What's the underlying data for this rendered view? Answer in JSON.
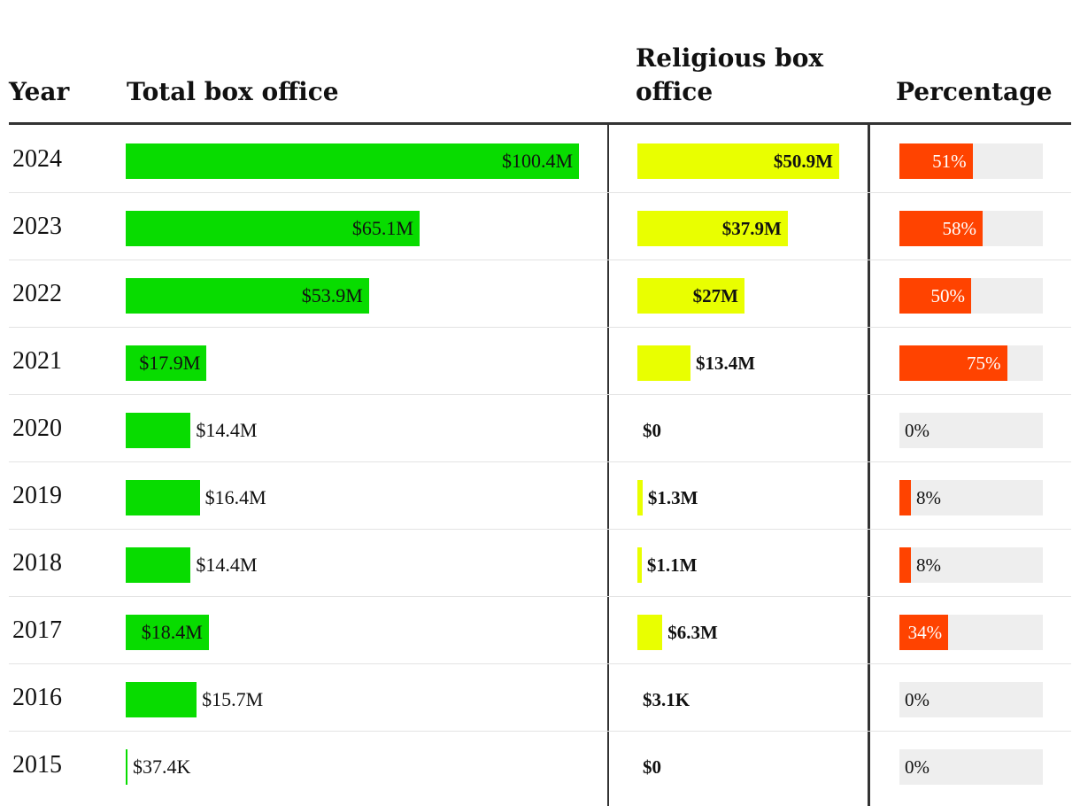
{
  "chart_data": {
    "type": "table",
    "columns": {
      "year": "Year",
      "total": "Total box office",
      "religious_line1": "Religious box",
      "religious_line2": "office",
      "percentage": "Percentage"
    },
    "total_axis_max": 100.4,
    "religious_axis_max": 50.9,
    "rows": [
      {
        "year": "2024",
        "total": 100.4,
        "total_label": "$100.4M",
        "religious": 50.9,
        "religious_label": "$50.9M",
        "pct": 51,
        "pct_label": "51%"
      },
      {
        "year": "2023",
        "total": 65.1,
        "total_label": "$65.1M",
        "religious": 37.9,
        "religious_label": "$37.9M",
        "pct": 58,
        "pct_label": "58%"
      },
      {
        "year": "2022",
        "total": 53.9,
        "total_label": "$53.9M",
        "religious": 27,
        "religious_label": "$27M",
        "pct": 50,
        "pct_label": "50%"
      },
      {
        "year": "2021",
        "total": 17.9,
        "total_label": "$17.9M",
        "religious": 13.4,
        "religious_label": "$13.4M",
        "pct": 75,
        "pct_label": "75%"
      },
      {
        "year": "2020",
        "total": 14.4,
        "total_label": "$14.4M",
        "religious": 0,
        "religious_label": "$0",
        "pct": 0,
        "pct_label": "0%"
      },
      {
        "year": "2019",
        "total": 16.4,
        "total_label": "$16.4M",
        "religious": 1.3,
        "religious_label": "$1.3M",
        "pct": 8,
        "pct_label": "8%"
      },
      {
        "year": "2018",
        "total": 14.4,
        "total_label": "$14.4M",
        "religious": 1.1,
        "religious_label": "$1.1M",
        "pct": 8,
        "pct_label": "8%"
      },
      {
        "year": "2017",
        "total": 18.4,
        "total_label": "$18.4M",
        "religious": 6.3,
        "religious_label": "$6.3M",
        "pct": 34,
        "pct_label": "34%"
      },
      {
        "year": "2016",
        "total": 15.7,
        "total_label": "$15.7M",
        "religious": 0.0031,
        "religious_label": "$3.1K",
        "pct": 0,
        "pct_label": "0%"
      },
      {
        "year": "2015",
        "total": 0.0374,
        "total_label": "$37.4K",
        "religious": 0,
        "religious_label": "$0",
        "pct": 0,
        "pct_label": "0%"
      }
    ],
    "colors": {
      "total_bar": "#08dc00",
      "religious_bar": "#e9ff00",
      "percentage_bar": "#ff4300",
      "percentage_track": "#eeeeee",
      "text": "#111111",
      "text_on_dark": "#ffffff"
    }
  }
}
